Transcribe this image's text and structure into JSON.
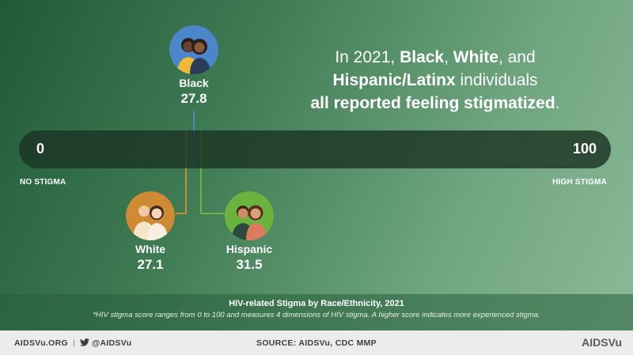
{
  "headline": {
    "prefix": "In 2021, ",
    "bold1": "Black",
    "sep1": ", ",
    "bold2": "White",
    "mid": ", and",
    "bold3": "Hispanic/Latinx",
    "suffix": " individuals",
    "bold4": "all reported feeling stigmatized",
    "end": "."
  },
  "scale": {
    "min_label": "0",
    "max_label": "100",
    "left_caption": "NO STIGMA",
    "right_caption": "HIGH STIGMA"
  },
  "chart_data": {
    "type": "scatter",
    "title": "HIV-related Stigma by Race/Ethnicity, 2021",
    "xlim": [
      0,
      100
    ],
    "points": [
      {
        "name": "Black",
        "value": "27.8",
        "x": 27.8,
        "color": "#4a86c9"
      },
      {
        "name": "White",
        "value": "27.1",
        "x": 27.1,
        "color": "#d08a34"
      },
      {
        "name": "Hispanic",
        "value": "31.5",
        "x": 31.5,
        "color": "#6ab33f"
      }
    ]
  },
  "caption": {
    "title": "HIV-related Stigma by Race/Ethnicity, 2021",
    "note": "*HIV stigma score ranges from 0 to 100 and measures 4 dimensions of HIV stigma. A higher score indicates more experienced stigma."
  },
  "footer": {
    "site": "AIDSVu.ORG",
    "twitter_handle": "@AIDSVu",
    "source": "SOURCE: AIDSVu, CDC MMP",
    "brand": "AIDSVu"
  }
}
